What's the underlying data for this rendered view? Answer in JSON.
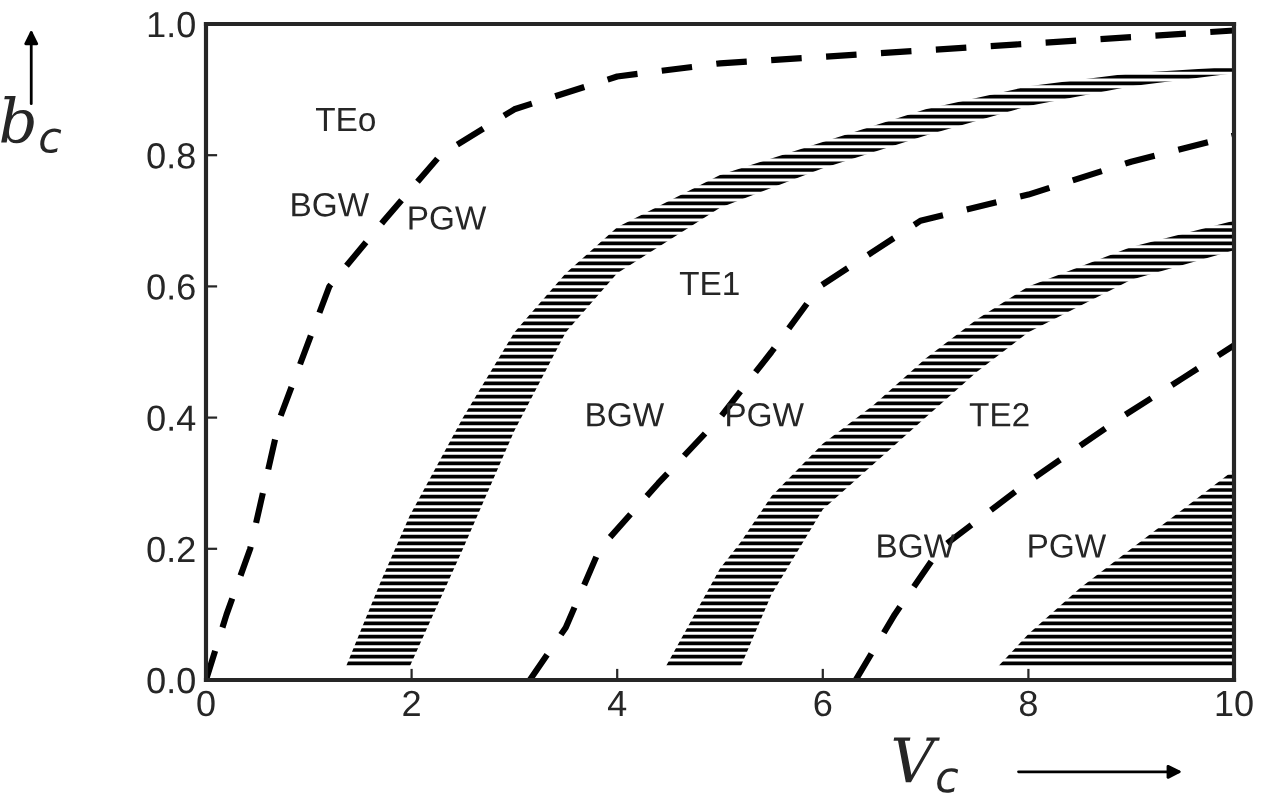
{
  "chart_data": {
    "type": "line",
    "xlabel": "V$_{c}$",
    "ylabel": "b$_{c}$",
    "xlim": [
      0,
      10
    ],
    "ylim": [
      0,
      1.0
    ],
    "xticks": [
      0,
      2,
      4,
      6,
      8,
      10
    ],
    "yticks": [
      {
        "value": 0,
        "label": "0.0"
      },
      {
        "value": 0.2,
        "label": "0.2"
      },
      {
        "value": 0.4,
        "label": "0.4"
      },
      {
        "value": 0.6,
        "label": "0.6"
      },
      {
        "value": 0.8,
        "label": "0.8"
      },
      {
        "value": 1.0,
        "label": "1.0"
      }
    ],
    "grid": false,
    "legend": false,
    "line_style": "dashed",
    "marker": "none",
    "series": [
      {
        "color": "#000000",
        "x": [
          0,
          0.2,
          0.43,
          0.72,
          1.2,
          1.73,
          2.28,
          3,
          4,
          5,
          6,
          7,
          8,
          9,
          10
        ],
        "values": [
          0,
          0.1,
          0.2,
          0.4,
          0.6,
          0.7,
          0.8,
          0.87,
          0.92,
          0.94,
          0.95,
          0.96,
          0.97,
          0.98,
          0.99
        ]
      },
      {
        "color": "#000000",
        "x": [
          3.15,
          3.5,
          3.83,
          4.4,
          5.0,
          5.5,
          5.97,
          6.95,
          8,
          9,
          10
        ],
        "values": [
          0,
          0.08,
          0.2,
          0.3,
          0.4,
          0.5,
          0.6,
          0.7,
          0.74,
          0.79,
          0.83
        ]
      },
      {
        "color": "#000000",
        "x": [
          6.32,
          6.7,
          7.14,
          7.98,
          8.9,
          9.5,
          10
        ],
        "values": [
          0,
          0.1,
          0.2,
          0.3,
          0.4,
          0.46,
          0.51
        ]
      },
      {
        "type": "area",
        "color": "#000000",
        "x": [
          1.36,
          1.7,
          1.98,
          2.5,
          3.0,
          3.5,
          4,
          5,
          6,
          7,
          8,
          9,
          10
        ],
        "values": [
          null,
          null,
          null,
          null,
          null,
          null,
          null,
          null,
          null,
          null,
          null,
          null,
          null
        ],
        "upper": [
          0.02,
          0.15,
          0.25,
          0.4,
          0.53,
          0.62,
          0.69,
          0.77,
          0.82,
          0.87,
          0.905,
          0.925,
          0.935
        ],
        "lower": [
          0.02,
          0.02,
          0.02,
          0.2,
          0.38,
          0.53,
          0.62,
          0.72,
          0.78,
          0.83,
          0.875,
          0.905,
          0.925
        ]
      },
      {
        "type": "area",
        "color": "#000000",
        "x": [
          4.47,
          5.0,
          5.2,
          5.5,
          6,
          6.5,
          7,
          7.5,
          8,
          9,
          10
        ],
        "values": [
          null,
          null,
          null,
          null,
          null,
          null,
          null,
          null,
          null,
          null,
          null
        ],
        "upper": [
          0.02,
          0.17,
          0.21,
          0.28,
          0.36,
          0.42,
          0.49,
          0.55,
          0.6,
          0.66,
          0.7
        ],
        "lower": [
          0.02,
          0.02,
          0.02,
          0.13,
          0.26,
          0.33,
          0.4,
          0.47,
          0.53,
          0.61,
          0.655
        ]
      },
      {
        "type": "area",
        "color": "#000000",
        "x": [
          7.7,
          8,
          8.5,
          9,
          9.5,
          10
        ],
        "values": [
          null,
          null,
          null,
          null,
          null,
          null
        ],
        "upper": [
          0.02,
          0.07,
          0.14,
          0.2,
          0.26,
          0.32
        ],
        "lower": [
          0.02,
          0.02,
          0.02,
          0.02,
          0.02,
          0.02
        ]
      }
    ],
    "annotations": [
      "TEo",
      "BGW",
      "PGW",
      "TE1",
      "BGW",
      "PGW",
      "TE2",
      "BGW",
      "PGW"
    ]
  }
}
